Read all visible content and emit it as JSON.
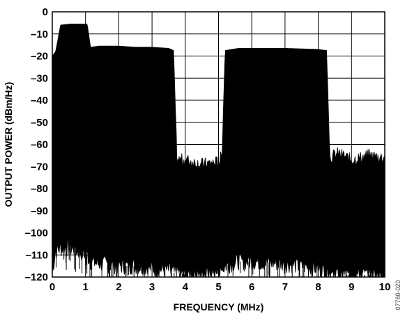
{
  "chart_data": {
    "type": "area",
    "title": "",
    "xlabel": "FREQUENCY (MHz)",
    "ylabel": "OUTPUT POWER (dBm/Hz)",
    "xlim": [
      0,
      10
    ],
    "ylim": [
      -120,
      0
    ],
    "x_ticks": [
      "0",
      "1",
      "2",
      "3",
      "4",
      "5",
      "6",
      "7",
      "8",
      "9",
      "10"
    ],
    "y_ticks": [
      "0",
      "–10",
      "–20",
      "–30",
      "–40",
      "–50",
      "–60",
      "–70",
      "–80",
      "–90",
      "–100",
      "–110",
      "–120"
    ],
    "grid": true,
    "legend": "none",
    "color": "#000000",
    "series": [
      {
        "values_description": "upper envelope of output power spectral density",
        "x": [
          0.0,
          0.1,
          0.25,
          0.55,
          0.75,
          1.05,
          1.15,
          1.4,
          2.0,
          2.5,
          3.0,
          3.5,
          3.65,
          3.75,
          4.0,
          4.5,
          5.0,
          5.1,
          5.2,
          5.6,
          6.0,
          7.0,
          8.0,
          8.25,
          8.35,
          8.6,
          9.0,
          9.5,
          10.0
        ],
        "top_y": [
          -20,
          -18,
          -6,
          -5.5,
          -5.5,
          -5.5,
          -16,
          -15.5,
          -15.5,
          -16,
          -16,
          -16.5,
          -17.5,
          -67,
          -67,
          -69,
          -68,
          -65,
          -17.5,
          -16.5,
          -16.5,
          -16.5,
          -17,
          -17.5,
          -66,
          -64,
          -67,
          -65,
          -66
        ],
        "bottom_y": [
          -118,
          -108,
          -107,
          -107,
          -108,
          -110,
          -113,
          -114,
          -115,
          -115,
          -116,
          -117,
          -118,
          -118,
          -119,
          -119,
          -118,
          -117,
          -115,
          -113,
          -113,
          -114,
          -116,
          -118,
          -118,
          -119,
          -119,
          -119,
          -120
        ]
      }
    ]
  },
  "figure_id": "07760-020"
}
